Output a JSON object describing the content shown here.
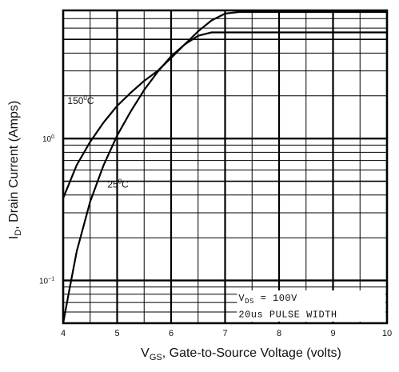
{
  "chart_data": {
    "type": "line",
    "x_axis": {
      "label_main": "V",
      "label_sub": "GS",
      "label_rest": ", Gate-to-Source Voltage (volts)",
      "range": [
        4,
        10
      ],
      "ticks": [
        "4",
        "5",
        "6",
        "7",
        "8",
        "9",
        "10"
      ]
    },
    "y_axis": {
      "label_main": "I",
      "label_sub": "D",
      "label_rest": ", Drain Current (Amps)",
      "scale": "log",
      "range": [
        0.05,
        8
      ],
      "tick_labels": [
        {
          "base": "10",
          "exp": "0",
          "value": 1
        },
        {
          "base": "10",
          "exp": "−1",
          "value": 0.1
        }
      ]
    },
    "series": [
      {
        "name": "150°C",
        "label_main": "150",
        "label_sup": "0",
        "label_rest": "C",
        "x": [
          4.0,
          4.25,
          4.5,
          4.75,
          5.0,
          5.25,
          5.5,
          5.75,
          6.0,
          6.25,
          6.5,
          6.75,
          7.0,
          7.25,
          8.0,
          9.0,
          10.0
        ],
        "y": [
          0.38,
          0.65,
          0.95,
          1.3,
          1.7,
          2.1,
          2.55,
          3.0,
          3.7,
          4.6,
          5.7,
          6.8,
          7.6,
          7.8,
          7.8,
          7.8,
          7.8
        ]
      },
      {
        "name": "25°C",
        "label_main": "25",
        "label_sup": "0",
        "label_rest": "C",
        "x": [
          4.0,
          4.1,
          4.25,
          4.5,
          4.75,
          5.0,
          5.25,
          5.5,
          5.75,
          6.0,
          6.25,
          6.5,
          6.75,
          7.0,
          8.0,
          9.0,
          10.0
        ],
        "y": [
          0.05,
          0.08,
          0.16,
          0.36,
          0.65,
          1.05,
          1.55,
          2.2,
          2.95,
          3.8,
          4.6,
          5.3,
          5.6,
          5.6,
          5.6,
          5.6,
          5.6
        ]
      }
    ],
    "annotations": [
      {
        "main": "V",
        "sub": "DS",
        "rest": " = 100V"
      },
      {
        "main": "20us PULSE WIDTH"
      }
    ],
    "grid": true,
    "legend": "none"
  }
}
